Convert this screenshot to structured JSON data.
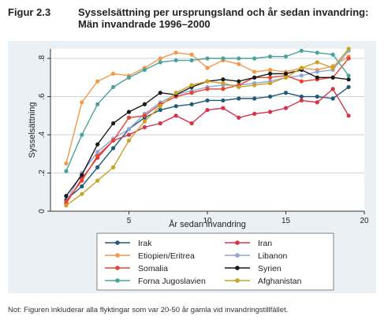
{
  "figure": {
    "number": "Figur 2.3",
    "title": "Sysselsättning per ursprungsland och år sedan invandring: Män invandrade 1996–2000"
  },
  "note": "Not: Figuren inkluderar alla flyktingar som var 20-50 år gamla vid invandringstillfället.",
  "chart_data": {
    "type": "line",
    "title": "Sysselsättning per ursprungsland och år sedan invandring: Män invandrade 1996–2000",
    "xlabel": "År sedan invandring",
    "ylabel": "Sysselsättning",
    "xlim": [
      0,
      20
    ],
    "ylim": [
      0,
      0.85
    ],
    "xticks": [
      5,
      10,
      15,
      20
    ],
    "yticks": [
      0,
      0.2,
      0.4,
      0.6,
      0.8
    ],
    "ytick_labels": [
      "0",
      ".2",
      ".4",
      ".6",
      ".8"
    ],
    "grid": "horizontal",
    "legend_position": "bottom",
    "x": [
      1,
      2,
      3,
      4,
      5,
      6,
      7,
      8,
      9,
      10,
      11,
      12,
      13,
      14,
      15,
      16,
      17,
      18,
      19
    ],
    "series": [
      {
        "name": "Irak",
        "color": "#1f5a7a",
        "values": [
          0.06,
          0.13,
          0.23,
          0.33,
          0.43,
          0.49,
          0.53,
          0.55,
          0.56,
          0.58,
          0.58,
          0.59,
          0.59,
          0.6,
          0.62,
          0.6,
          0.6,
          0.59,
          0.65
        ]
      },
      {
        "name": "Iran",
        "color": "#d6334b",
        "values": [
          0.04,
          0.17,
          0.28,
          0.37,
          0.4,
          0.44,
          0.46,
          0.5,
          0.46,
          0.53,
          0.54,
          0.49,
          0.51,
          0.52,
          0.54,
          0.58,
          0.57,
          0.64,
          0.5
        ]
      },
      {
        "name": "Etiopien/Eritrea",
        "color": "#f2994a",
        "values": [
          0.25,
          0.57,
          0.68,
          0.72,
          0.71,
          0.75,
          0.8,
          0.83,
          0.82,
          0.75,
          0.79,
          0.77,
          0.73,
          0.74,
          0.73,
          0.75,
          0.74,
          0.76,
          0.81
        ]
      },
      {
        "name": "Libanon",
        "color": "#8fa5d6",
        "values": [
          0.05,
          0.2,
          0.31,
          0.38,
          0.43,
          0.51,
          0.57,
          0.61,
          0.63,
          0.65,
          0.66,
          0.66,
          0.67,
          0.68,
          0.7,
          0.71,
          0.73,
          0.74,
          0.84
        ]
      },
      {
        "name": "Somalia",
        "color": "#e8432e",
        "values": [
          0.05,
          0.16,
          0.29,
          0.37,
          0.49,
          0.5,
          0.56,
          0.6,
          0.62,
          0.64,
          0.64,
          0.66,
          0.7,
          0.7,
          0.71,
          0.68,
          0.69,
          0.7,
          0.8
        ]
      },
      {
        "name": "Syrien",
        "color": "#1a1a1a",
        "values": [
          0.08,
          0.19,
          0.35,
          0.46,
          0.52,
          0.56,
          0.62,
          0.61,
          0.65,
          0.68,
          0.69,
          0.68,
          0.7,
          0.72,
          0.72,
          0.74,
          0.7,
          0.7,
          0.69
        ]
      },
      {
        "name": "Forna Jugoslavien",
        "color": "#4aa39a",
        "values": [
          0.21,
          0.4,
          0.56,
          0.65,
          0.7,
          0.74,
          0.78,
          0.79,
          0.79,
          0.8,
          0.8,
          0.8,
          0.8,
          0.81,
          0.81,
          0.84,
          0.83,
          0.82,
          0.71
        ]
      },
      {
        "name": "Afghanistan",
        "color": "#c9a227",
        "values": [
          0.03,
          0.09,
          0.16,
          0.23,
          0.37,
          0.47,
          0.55,
          0.62,
          0.66,
          0.68,
          0.67,
          0.65,
          0.66,
          0.67,
          0.7,
          0.75,
          0.78,
          0.75,
          0.85
        ]
      }
    ]
  }
}
